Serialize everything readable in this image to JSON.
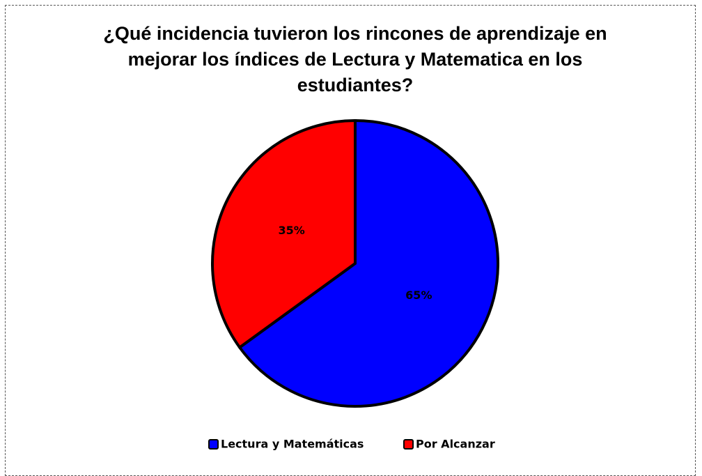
{
  "chart_data": {
    "type": "pie",
    "title": "¿Qué incidencia tuvieron los rincones de aprendizaje en mejorar los índices de Lectura y Matematica en los estudiantes?",
    "categories": [
      "Lectura y Matemáticas",
      "Por Alcanzar"
    ],
    "values": [
      65,
      35
    ],
    "value_labels": [
      "65%",
      "35%"
    ],
    "colors": [
      "#0000ff",
      "#ff0000"
    ],
    "legend": "bottom"
  }
}
